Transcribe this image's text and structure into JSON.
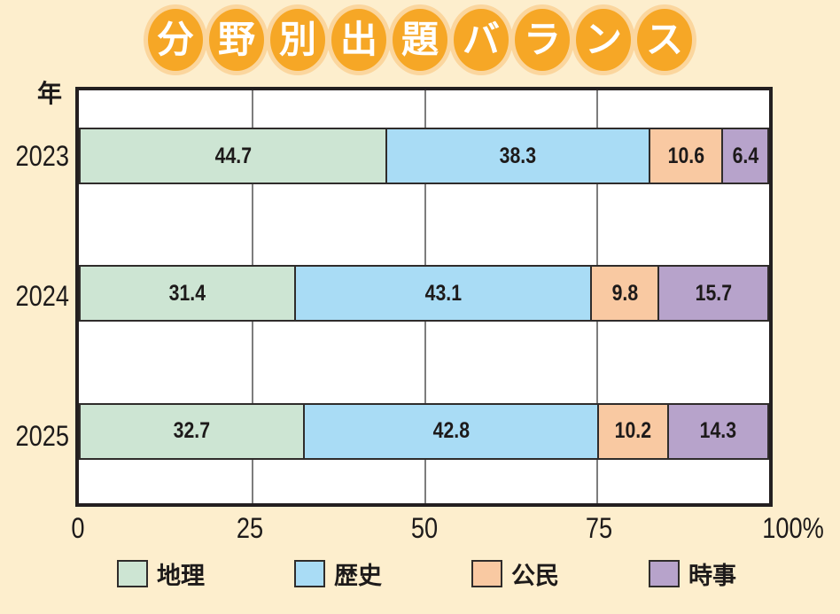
{
  "title": {
    "text": "分野別出題バランス",
    "chars": [
      "分",
      "野",
      "別",
      "出",
      "題",
      "バ",
      "ラ",
      "ン",
      "ス"
    ]
  },
  "axis": {
    "y_unit_label": "年",
    "x_ticks": [
      "0",
      "25",
      "50",
      "75",
      "100%"
    ]
  },
  "chart_data": {
    "type": "bar",
    "orientation": "horizontal",
    "stacked": true,
    "title": "分野別出題バランス",
    "xlabel": "%",
    "ylabel": "年",
    "xlim": [
      0,
      100
    ],
    "grid": "vertical lines at 25, 50, 75",
    "legend_position": "bottom",
    "categories": [
      "2023",
      "2024",
      "2025"
    ],
    "series": [
      {
        "name": "地理",
        "color": "#cde5d3",
        "values": [
          44.7,
          31.4,
          32.7
        ]
      },
      {
        "name": "歴史",
        "color": "#a9dcf5",
        "values": [
          38.3,
          43.1,
          42.8
        ]
      },
      {
        "name": "公民",
        "color": "#f9c9a2",
        "values": [
          10.6,
          9.8,
          10.2
        ]
      },
      {
        "name": "時事",
        "color": "#b7a3cb",
        "values": [
          6.4,
          15.7,
          14.3
        ]
      }
    ]
  },
  "colors": {
    "background": "#fdeecd",
    "title_circle": "#f6a726",
    "title_halo": "#fbd69e",
    "plot_border": "#231f20",
    "gridline": "#7d7d7d",
    "segment_border": "#2f2c2b"
  },
  "legend": {
    "items": [
      {
        "label": "地理"
      },
      {
        "label": "歴史"
      },
      {
        "label": "公民"
      },
      {
        "label": "時事"
      }
    ]
  }
}
